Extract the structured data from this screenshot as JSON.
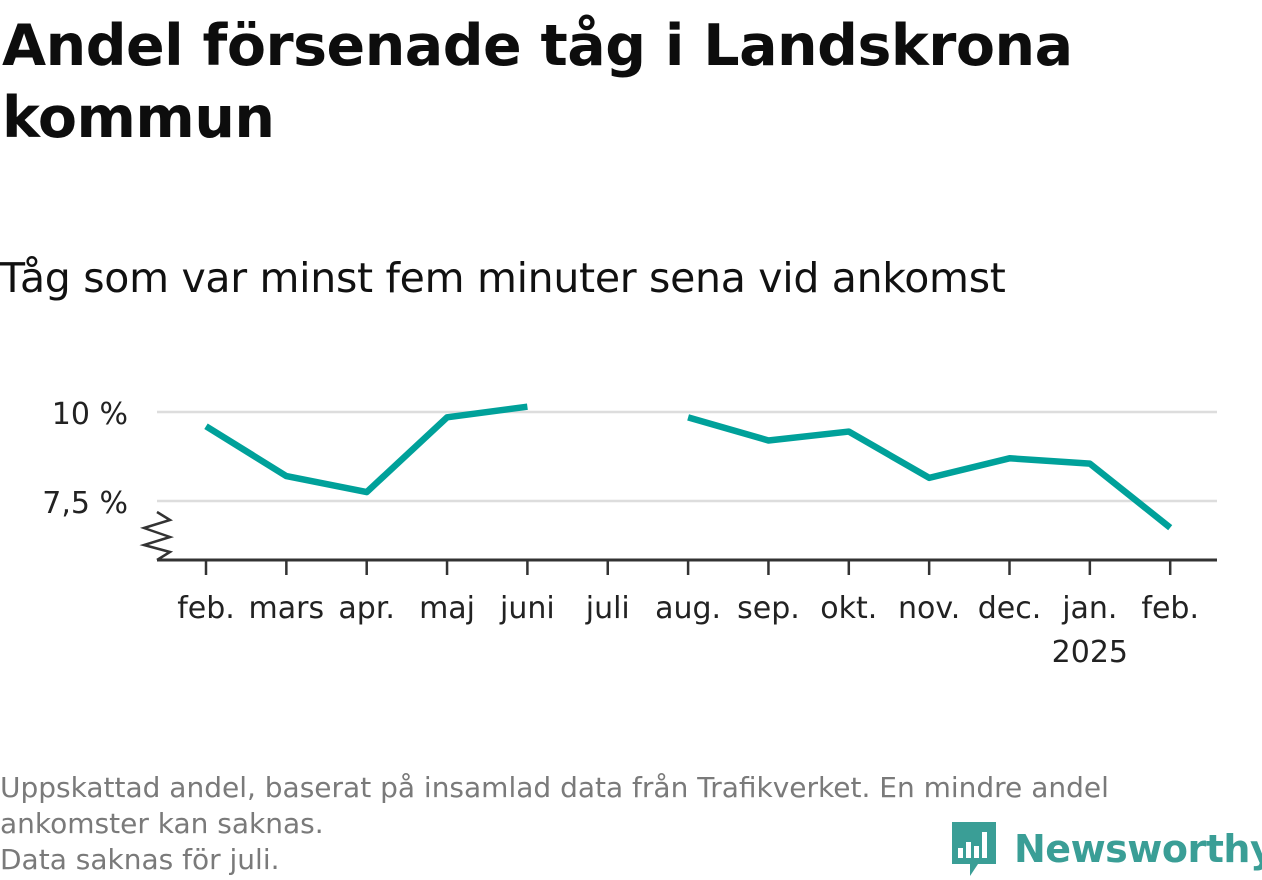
{
  "title": "Andel försenade tåg i Landskrona kommun",
  "subtitle": "Tåg som var minst fem minuter sena vid ankomst",
  "colors": {
    "line": "#00a19a",
    "grid": "#dddddd",
    "axis": "#333333",
    "footnote": "#7a7a7a",
    "brand": "#3a9e96"
  },
  "chart_data": {
    "type": "line",
    "categories": [
      "feb.",
      "mars",
      "apr.",
      "maj",
      "juni",
      "juli",
      "aug.",
      "sep.",
      "okt.",
      "nov.",
      "dec.",
      "jan.",
      "feb."
    ],
    "year_label": "2025",
    "series": [
      {
        "values": [
          9.6,
          8.2,
          7.75,
          9.85,
          10.15,
          null,
          9.85,
          9.2,
          9.45,
          8.15,
          8.7,
          8.55,
          6.75
        ]
      }
    ],
    "y_ticks": [
      {
        "value": 7.5,
        "label": "7,5 %"
      },
      {
        "value": 10,
        "label": "10 %"
      }
    ],
    "ylim": [
      6.0,
      10.5
    ],
    "grid": true,
    "axis_break": true
  },
  "footnote": {
    "line1": "Uppskattad andel, baserat på insamlad data från Trafikverket. En mindre andel",
    "line2": "ankomster kan saknas.",
    "line3": "Data saknas för juli."
  },
  "brand": {
    "name": "Newsworthy",
    "icon": "newsworthy-logo-icon"
  }
}
